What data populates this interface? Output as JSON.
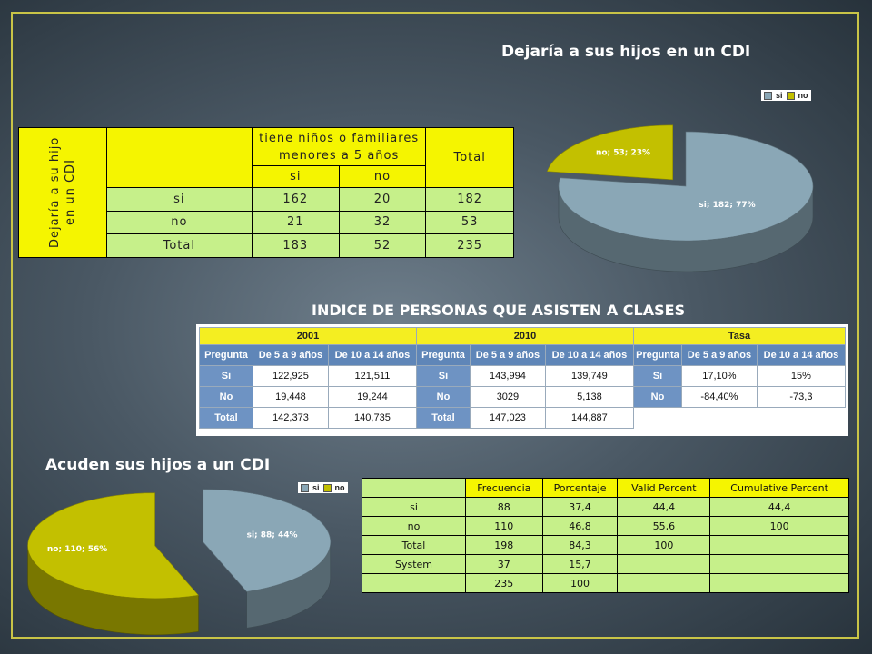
{
  "pie1": {
    "title": "Dejaría a sus hijos en un CDI",
    "legend": [
      {
        "label": "si",
        "color": "#8aa7b6"
      },
      {
        "label": "no",
        "color": "#c3c000"
      }
    ],
    "labels": {
      "si": "si; 182; 77%",
      "no": "no; 53; 23%"
    }
  },
  "table1": {
    "row_header": "Dejaría a su hijo en un CDI",
    "col_group": "tiene niños o familiares menores a 5 años",
    "total_label": "Total",
    "sub": [
      "si",
      "no"
    ],
    "rows": [
      {
        "label": "si",
        "si": "162",
        "no": "20",
        "total": "182"
      },
      {
        "label": "no",
        "si": "21",
        "no": "32",
        "total": "53"
      },
      {
        "label": "Total",
        "si": "183",
        "no": "52",
        "total": "235"
      }
    ]
  },
  "section2": {
    "title": "INDICE DE PERSONAS QUE ASISTEN A CLASES"
  },
  "table2": {
    "years": [
      "2001",
      "2010",
      "Tasa"
    ],
    "headers": [
      "Pregunta",
      "De 5 a 9 años",
      "De 10 a 14 años"
    ],
    "rows": [
      [
        "Si",
        "122,925",
        "121,511",
        "Si",
        "143,994",
        "139,749",
        "Si",
        "17,10%",
        "15%"
      ],
      [
        "No",
        "19,448",
        "19,244",
        "No",
        "3029",
        "5,138",
        "No",
        "-84,40%",
        "-73,3"
      ],
      [
        "Total",
        "142,373",
        "140,735",
        "Total",
        "147,023",
        "144,887"
      ]
    ]
  },
  "pie2": {
    "title": "Acuden sus hijos a un CDI",
    "legend": [
      {
        "label": "si",
        "color": "#8aa7b6"
      },
      {
        "label": "no",
        "color": "#c3c000"
      }
    ],
    "labels": {
      "si": "si; 88; 44%",
      "no": "no; 110; 56%"
    }
  },
  "table3": {
    "headers": [
      "Frecuencia",
      "Porcentaje",
      "Valid Percent",
      "Cumulative Percent"
    ],
    "rows": [
      {
        "label": "si",
        "vals": [
          "88",
          "37,4",
          "44,4",
          "44,4"
        ],
        "color": "g"
      },
      {
        "label": "no",
        "vals": [
          "110",
          "46,8",
          "55,6",
          "100"
        ],
        "color": "g"
      },
      {
        "label": "Total",
        "vals": [
          "198",
          "84,3",
          "100",
          ""
        ],
        "color": "g"
      },
      {
        "label": "System",
        "vals": [
          "37",
          "15,7",
          "",
          ""
        ],
        "color": "g"
      },
      {
        "label": "",
        "vals": [
          "235",
          "100",
          "",
          ""
        ],
        "color": "g"
      }
    ]
  },
  "chart_data": [
    {
      "type": "pie",
      "title": "Dejaría a sus hijos en un CDI",
      "categories": [
        "si",
        "no"
      ],
      "values": [
        182,
        53
      ],
      "percent": [
        77,
        23
      ],
      "legend": "top-right"
    },
    {
      "type": "pie",
      "title": "Acuden sus hijos a un CDI",
      "categories": [
        "si",
        "no"
      ],
      "values": [
        88,
        110
      ],
      "percent": [
        44,
        56
      ],
      "legend": "top-right"
    }
  ]
}
